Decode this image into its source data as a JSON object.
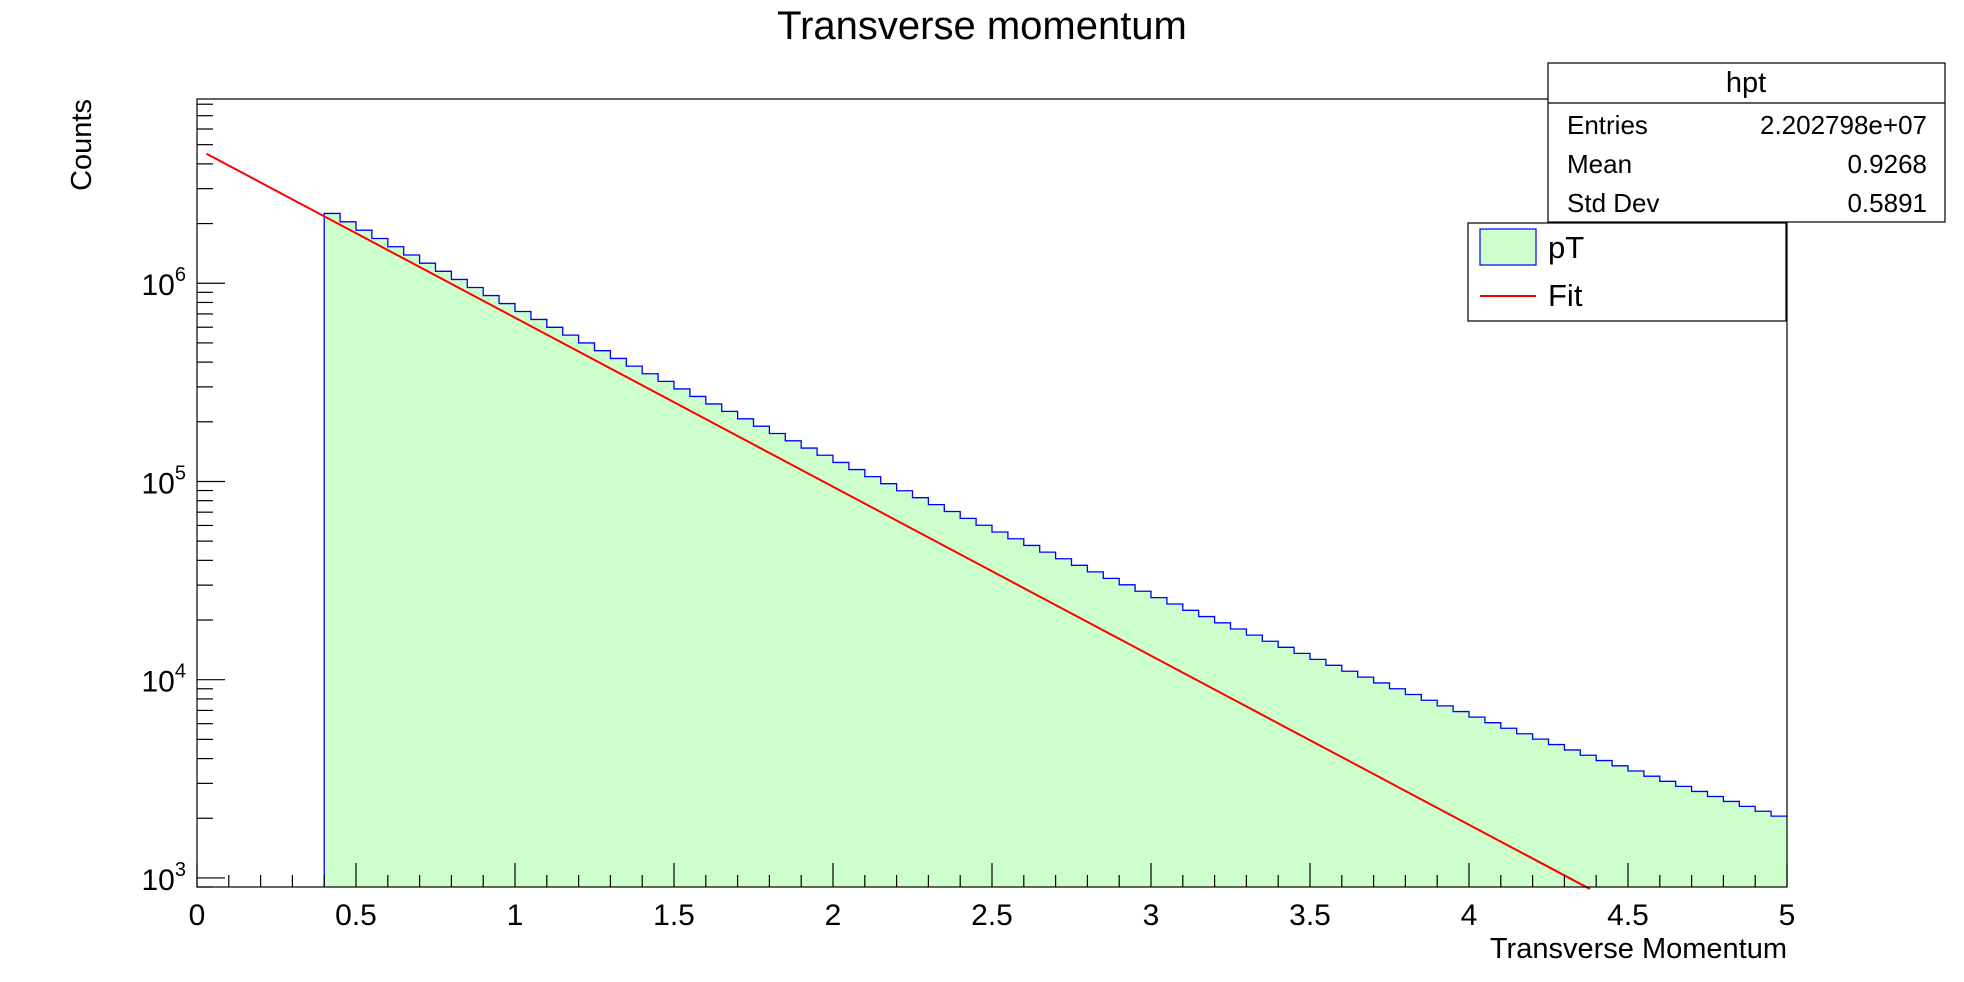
{
  "colors": {
    "background": "#ffffff",
    "hist_fill": "#ccffcc",
    "hist_line": "#0000ff",
    "fit_line": "#ff0000",
    "axis": "#000000"
  },
  "chart_data": {
    "type": "bar",
    "title": "Transverse momentum",
    "xlabel": "Transverse Momentum",
    "ylabel": "Counts",
    "xlim": [
      0,
      5
    ],
    "ylog": true,
    "ylim": [
      900,
      8500000
    ],
    "x_tick_labels": [
      "0",
      "0.5",
      "1",
      "1.5",
      "2",
      "2.5",
      "3",
      "3.5",
      "4",
      "4.5",
      "5"
    ],
    "y_tick_labels": [
      {
        "value": 1000,
        "base": "10",
        "exp": "3"
      },
      {
        "value": 10000,
        "base": "10",
        "exp": "4"
      },
      {
        "value": 100000,
        "base": "10",
        "exp": "5"
      },
      {
        "value": 1000000,
        "base": "10",
        "exp": "6"
      }
    ],
    "histogram": {
      "name": "pT",
      "bin_width": 0.05,
      "x_start": 0.4,
      "x_end": 5.0,
      "value_at_start": 2250000,
      "value_at_end": 2050,
      "log_shape_curvature": 0.205
    },
    "fit": {
      "name": "Fit",
      "function": "exp",
      "x_range": [
        0.03,
        4.38
      ],
      "y_at_start": 4500000,
      "y_at_end": 880
    },
    "legend": {
      "placement": "top-right",
      "entries": [
        {
          "label": "pT",
          "type": "fill"
        },
        {
          "label": "Fit",
          "type": "line"
        }
      ]
    },
    "stats_box": {
      "title": "hpt",
      "rows": [
        {
          "label": "Entries",
          "value": "2.202798e+07"
        },
        {
          "label": "Mean",
          "value": "0.9268"
        },
        {
          "label": "Std Dev",
          "value": "0.5891"
        }
      ]
    }
  }
}
